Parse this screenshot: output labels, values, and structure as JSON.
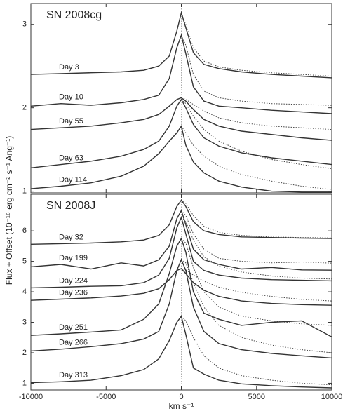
{
  "y_label": "Flux + Offset (10⁻¹⁶ erg cm⁻² s⁻¹ Ang⁻¹)",
  "chart_data": [
    {
      "type": "line",
      "title": "SN 2008cg",
      "x": [
        -10000,
        -8000,
        -6000,
        -4000,
        -2500,
        -1500,
        -800,
        -300,
        0,
        300,
        800,
        1500,
        2500,
        4000,
        6000,
        8000,
        10000
      ],
      "x_dotted": [
        0,
        300,
        800,
        1500,
        2500,
        4000,
        6000,
        8000,
        10000
      ],
      "xlim": [
        -10000,
        10000
      ],
      "xticks": [
        -10000,
        -5000,
        0,
        5000,
        10000
      ],
      "ylim": [
        0.98,
        3.25
      ],
      "yticks": [
        1,
        2,
        3
      ],
      "series": [
        {
          "name": "Day 3",
          "color": "#333333",
          "values": [
            2.4,
            2.41,
            2.42,
            2.43,
            2.45,
            2.5,
            2.62,
            2.92,
            3.14,
            2.96,
            2.66,
            2.52,
            2.47,
            2.43,
            2.4,
            2.38,
            2.36
          ],
          "dotted": {
            "values": [
              3.14,
              3.0,
              2.72,
              2.56,
              2.49,
              2.45,
              2.42,
              2.4,
              2.38
            ]
          }
        },
        {
          "name": "Day 10",
          "color": "#333333",
          "values": [
            2.02,
            2.05,
            2.03,
            2.06,
            2.1,
            2.15,
            2.35,
            2.72,
            2.87,
            2.65,
            2.25,
            2.08,
            2.02,
            2.0,
            1.97,
            1.95,
            1.93
          ],
          "dotted": {
            "values": [
              2.87,
              2.75,
              2.4,
              2.2,
              2.12,
              2.08,
              2.05,
              2.04,
              2.03
            ]
          }
        },
        {
          "name": "Day 55",
          "color": "#333333",
          "values": [
            1.74,
            1.76,
            1.78,
            1.82,
            1.86,
            1.92,
            2.02,
            2.1,
            2.12,
            2.08,
            1.98,
            1.86,
            1.78,
            1.72,
            1.68,
            1.64,
            1.61
          ],
          "dotted": {
            "values": [
              2.12,
              2.1,
              2.04,
              1.96,
              1.88,
              1.82,
              1.78,
              1.76,
              1.74
            ]
          }
        },
        {
          "name": "Day 63",
          "color": "#333333",
          "values": [
            1.28,
            1.32,
            1.36,
            1.42,
            1.5,
            1.6,
            1.78,
            2.02,
            2.1,
            2.0,
            1.8,
            1.64,
            1.54,
            1.46,
            1.4,
            1.36,
            1.32
          ],
          "dotted": {
            "values": [
              2.1,
              2.05,
              1.9,
              1.74,
              1.6,
              1.48,
              1.38,
              1.32,
              1.27
            ]
          }
        },
        {
          "name": "Day 114",
          "color": "#333333",
          "values": [
            1.03,
            1.06,
            1.1,
            1.18,
            1.3,
            1.45,
            1.6,
            1.7,
            1.78,
            1.55,
            1.35,
            1.22,
            1.12,
            1.05,
            1.0,
            0.99,
            0.99
          ],
          "dotted": {
            "values": [
              1.78,
              1.7,
              1.55,
              1.42,
              1.3,
              1.2,
              1.12,
              1.06,
              1.02
            ]
          }
        }
      ]
    },
    {
      "type": "line",
      "title": "SN 2008J",
      "x_label": "km s⁻¹",
      "x": [
        -10000,
        -8000,
        -6000,
        -4000,
        -2500,
        -1500,
        -800,
        -300,
        0,
        300,
        800,
        1500,
        2500,
        4000,
        6000,
        8000,
        10000
      ],
      "x_dotted": [
        0,
        300,
        800,
        1500,
        2500,
        4000,
        6000,
        8000,
        10000
      ],
      "xlim": [
        -10000,
        10000
      ],
      "xticks": [
        -10000,
        -5000,
        0,
        5000,
        10000
      ],
      "ylim": [
        0.78,
        7.2
      ],
      "yticks": [
        1,
        2,
        3,
        4,
        5,
        6
      ],
      "series": [
        {
          "name": "Day 32",
          "color": "#333333",
          "values": [
            5.56,
            5.58,
            5.6,
            5.64,
            5.7,
            5.85,
            6.2,
            6.8,
            7.01,
            6.8,
            6.3,
            6.0,
            5.88,
            5.8,
            5.78,
            5.76,
            5.75
          ],
          "dotted": {
            "values": [
              7.01,
              6.9,
              6.5,
              6.15,
              5.95,
              5.85,
              5.8,
              5.78,
              5.77
            ]
          }
        },
        {
          "name": "Day 199",
          "color": "#333333",
          "values": [
            4.82,
            4.9,
            4.75,
            4.95,
            4.85,
            5.05,
            5.5,
            6.4,
            6.67,
            6.2,
            5.4,
            5.05,
            4.9,
            4.75,
            4.8,
            4.72,
            4.71
          ],
          "dotted": {
            "values": [
              6.67,
              6.5,
              5.9,
              5.4,
              5.1,
              5.0,
              4.95,
              4.98,
              4.94
            ]
          }
        },
        {
          "name": "Day 224",
          "color": "#333333",
          "values": [
            4.13,
            4.15,
            4.18,
            4.2,
            4.3,
            4.55,
            5.1,
            6.1,
            6.44,
            5.9,
            5.0,
            4.7,
            4.55,
            4.45,
            4.4,
            4.38,
            4.36
          ],
          "dotted": {
            "values": [
              6.44,
              6.3,
              5.7,
              5.15,
              4.85,
              4.65,
              4.52,
              4.45,
              4.42
            ]
          }
        },
        {
          "name": "Day 236",
          "color": "#333333",
          "values": [
            3.72,
            3.76,
            3.8,
            3.86,
            3.95,
            4.1,
            4.4,
            4.7,
            4.76,
            4.6,
            4.3,
            4.05,
            3.85,
            3.7,
            3.62,
            3.58,
            3.56
          ],
          "dotted": {
            "values": [
              4.76,
              4.72,
              4.55,
              4.35,
              4.15,
              3.98,
              3.85,
              3.75,
              3.7
            ]
          }
        },
        {
          "name": "Day 251",
          "color": "#333333",
          "values": [
            2.57,
            2.62,
            2.68,
            2.75,
            3.1,
            3.6,
            4.6,
            5.5,
            5.75,
            5.3,
            4.0,
            3.3,
            3.1,
            2.9,
            3.0,
            3.05,
            2.52
          ],
          "dotted": {
            "values": [
              5.75,
              5.6,
              4.8,
              4.0,
              3.5,
              3.2,
              3.05,
              2.95,
              2.9
            ]
          }
        },
        {
          "name": "Day 266",
          "color": "#333333",
          "values": [
            2.06,
            2.12,
            2.2,
            2.3,
            2.45,
            2.7,
            3.6,
            4.7,
            5.06,
            4.7,
            3.5,
            2.7,
            2.3,
            2.1,
            1.98,
            1.9,
            1.83
          ],
          "dotted": {
            "values": [
              5.06,
              4.95,
              4.3,
              3.5,
              2.9,
              2.5,
              2.25,
              2.1,
              2.0
            ]
          }
        },
        {
          "name": "Day 313",
          "color": "#333333",
          "values": [
            1.02,
            1.05,
            1.1,
            1.25,
            1.45,
            1.8,
            2.4,
            3.0,
            3.2,
            2.6,
            1.5,
            1.3,
            1.1,
            0.98,
            0.92,
            0.88,
            0.85
          ],
          "dotted": {
            "values": [
              3.2,
              3.05,
              2.5,
              1.9,
              1.5,
              1.25,
              1.1,
              1.0,
              0.95
            ]
          }
        }
      ]
    }
  ]
}
